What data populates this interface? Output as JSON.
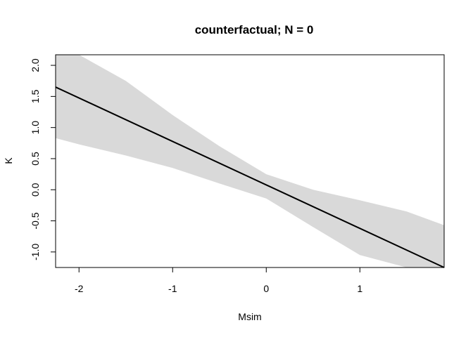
{
  "chart_data": {
    "type": "line",
    "title": "counterfactual; N = 0",
    "xlabel": "Msim",
    "ylabel": "K",
    "xlim": [
      -2.25,
      1.9
    ],
    "ylim": [
      -1.25,
      2.17
    ],
    "x_ticks": [
      -2,
      -1,
      0,
      1
    ],
    "x_tick_labels": [
      "-2",
      "-1",
      "0",
      "1"
    ],
    "y_ticks": [
      -1.0,
      -0.5,
      0.0,
      0.5,
      1.0,
      1.5,
      2.0
    ],
    "y_tick_labels": [
      "-1.0",
      "-0.5",
      "0.0",
      "0.5",
      "1.0",
      "1.5",
      "2.0"
    ],
    "grid": false,
    "series": [
      {
        "x": [
          -2.25,
          1.9
        ],
        "y": [
          1.65,
          -1.25
        ],
        "color": "#000000"
      }
    ],
    "interval": {
      "x": [
        -2.25,
        -2.0,
        -1.5,
        -1.0,
        -0.5,
        0.0,
        0.5,
        1.0,
        1.5,
        1.9
      ],
      "upper": [
        2.17,
        2.17,
        1.75,
        1.2,
        0.7,
        0.25,
        0.0,
        -0.17,
        -0.35,
        -0.57
      ],
      "lower": [
        0.83,
        0.73,
        0.55,
        0.35,
        0.1,
        -0.14,
        -0.6,
        -1.05,
        -1.25,
        -1.25
      ],
      "color": "#d9d9d9"
    }
  }
}
